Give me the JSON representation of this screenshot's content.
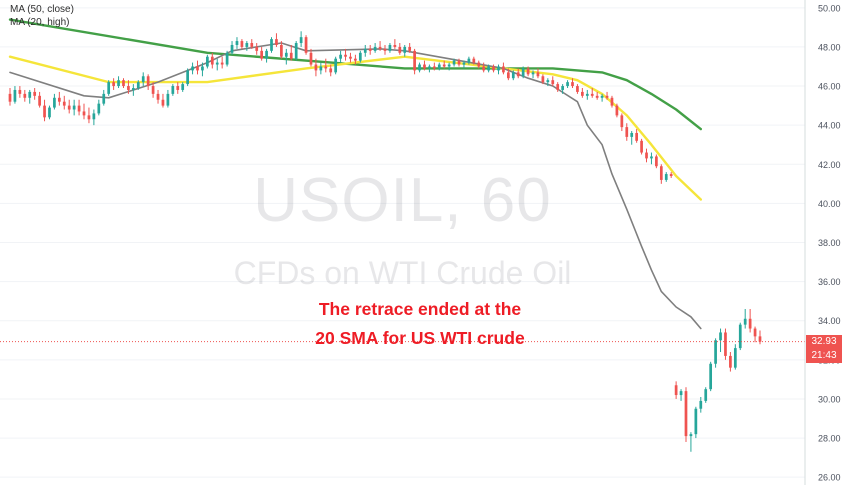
{
  "legend": {
    "ma1": "MA (50, close)",
    "ma2": "MA (20, high)"
  },
  "watermark": {
    "symbol": "USOIL, 60",
    "description": "CFDs on WTI Crude Oil"
  },
  "annotation": {
    "line1": "The retrace ended at the",
    "line2": "20 SMA for US WTI crude"
  },
  "price_tag": {
    "price": "32.93",
    "countdown": "21:43"
  },
  "colors": {
    "up": "#26a69a",
    "down": "#ef5350",
    "ma50": "#43a047",
    "ma20": "#f5e53a",
    "sma_gray": "#7f7f7f",
    "annotation": "#ee1c25"
  },
  "chart_data": {
    "type": "candlestick",
    "y_axis": {
      "ylim": [
        25.6,
        50.4
      ],
      "ticks": [
        "26.00",
        "28.00",
        "30.00",
        "32.00",
        "34.00",
        "36.00",
        "38.00",
        "40.00",
        "42.00",
        "44.00",
        "46.00",
        "48.00",
        "50.00"
      ]
    },
    "last_price": 32.93,
    "candles": [
      [
        45.6,
        45.9,
        45.0,
        45.2
      ],
      [
        45.2,
        46.0,
        45.1,
        45.8
      ],
      [
        45.8,
        46.0,
        45.4,
        45.6
      ],
      [
        45.6,
        45.8,
        45.2,
        45.4
      ],
      [
        45.4,
        45.8,
        45.1,
        45.7
      ],
      [
        45.7,
        45.9,
        45.3,
        45.5
      ],
      [
        45.5,
        45.7,
        44.9,
        45.0
      ],
      [
        45.0,
        45.3,
        44.2,
        44.4
      ],
      [
        44.4,
        45.0,
        44.3,
        44.9
      ],
      [
        44.9,
        45.6,
        44.8,
        45.4
      ],
      [
        45.4,
        45.7,
        45.0,
        45.2
      ],
      [
        45.2,
        45.5,
        44.8,
        45.0
      ],
      [
        45.0,
        45.3,
        44.6,
        44.8
      ],
      [
        44.8,
        45.3,
        44.5,
        45.0
      ],
      [
        45.0,
        45.3,
        44.5,
        44.7
      ],
      [
        44.7,
        45.1,
        44.3,
        44.5
      ],
      [
        44.5,
        44.9,
        44.1,
        44.3
      ],
      [
        44.3,
        44.8,
        44.0,
        44.6
      ],
      [
        44.6,
        45.3,
        44.5,
        45.1
      ],
      [
        45.1,
        45.8,
        45.0,
        45.6
      ],
      [
        45.6,
        46.3,
        45.5,
        46.2
      ],
      [
        46.2,
        46.4,
        45.8,
        46.0
      ],
      [
        46.0,
        46.5,
        45.9,
        46.3
      ],
      [
        46.3,
        46.4,
        45.9,
        46.0
      ],
      [
        46.0,
        46.3,
        45.6,
        45.8
      ],
      [
        45.8,
        46.1,
        45.5,
        45.9
      ],
      [
        45.9,
        46.3,
        45.8,
        46.2
      ],
      [
        46.2,
        46.7,
        46.0,
        46.5
      ],
      [
        46.5,
        46.6,
        45.8,
        46.0
      ],
      [
        46.0,
        46.2,
        45.4,
        45.6
      ],
      [
        45.6,
        45.8,
        45.1,
        45.3
      ],
      [
        45.3,
        45.6,
        44.9,
        45.0
      ],
      [
        45.0,
        45.8,
        44.9,
        45.6
      ],
      [
        45.6,
        46.1,
        45.5,
        46.0
      ],
      [
        46.0,
        46.2,
        45.6,
        45.8
      ],
      [
        45.8,
        46.2,
        45.7,
        46.1
      ],
      [
        46.1,
        46.9,
        46.0,
        46.8
      ],
      [
        46.8,
        47.2,
        46.6,
        47.0
      ],
      [
        47.0,
        47.3,
        46.6,
        46.8
      ],
      [
        46.8,
        47.2,
        46.5,
        47.0
      ],
      [
        47.0,
        47.6,
        46.9,
        47.5
      ],
      [
        47.5,
        47.7,
        46.9,
        47.1
      ],
      [
        47.1,
        47.4,
        46.8,
        47.2
      ],
      [
        47.2,
        47.5,
        46.9,
        47.1
      ],
      [
        47.1,
        47.8,
        47.0,
        47.7
      ],
      [
        47.7,
        48.3,
        47.6,
        48.1
      ],
      [
        48.1,
        48.5,
        47.9,
        48.3
      ],
      [
        48.3,
        48.4,
        47.9,
        48.0
      ],
      [
        48.0,
        48.3,
        47.8,
        48.2
      ],
      [
        48.2,
        48.4,
        47.9,
        48.0
      ],
      [
        48.0,
        48.2,
        47.6,
        47.8
      ],
      [
        47.8,
        48.0,
        47.3,
        47.4
      ],
      [
        47.4,
        47.9,
        47.2,
        47.8
      ],
      [
        47.8,
        48.5,
        47.7,
        48.4
      ],
      [
        48.4,
        48.7,
        48.0,
        48.1
      ],
      [
        48.1,
        48.3,
        47.4,
        47.5
      ],
      [
        47.5,
        47.9,
        47.1,
        47.7
      ],
      [
        47.7,
        48.1,
        47.3,
        47.4
      ],
      [
        47.4,
        48.3,
        47.3,
        48.2
      ],
      [
        48.2,
        48.8,
        48.0,
        48.5
      ],
      [
        48.5,
        48.6,
        47.6,
        47.7
      ],
      [
        47.7,
        47.9,
        47.0,
        47.1
      ],
      [
        47.1,
        47.4,
        46.5,
        46.8
      ],
      [
        46.8,
        47.2,
        46.6,
        47.0
      ],
      [
        47.0,
        47.4,
        46.7,
        46.9
      ],
      [
        46.9,
        47.1,
        46.5,
        46.7
      ],
      [
        46.7,
        47.5,
        46.6,
        47.4
      ],
      [
        47.4,
        47.8,
        47.2,
        47.6
      ],
      [
        47.6,
        47.9,
        47.3,
        47.5
      ],
      [
        47.5,
        47.7,
        47.2,
        47.4
      ],
      [
        47.4,
        47.6,
        47.1,
        47.3
      ],
      [
        47.3,
        47.8,
        47.2,
        47.7
      ],
      [
        47.7,
        48.1,
        47.5,
        47.9
      ],
      [
        47.9,
        48.1,
        47.6,
        47.8
      ],
      [
        47.8,
        48.2,
        47.7,
        48.0
      ],
      [
        48.0,
        48.3,
        47.8,
        47.9
      ],
      [
        47.9,
        48.1,
        47.6,
        47.8
      ],
      [
        47.8,
        48.2,
        47.7,
        48.1
      ],
      [
        48.1,
        48.4,
        47.9,
        48.0
      ],
      [
        48.0,
        48.2,
        47.6,
        47.7
      ],
      [
        47.7,
        48.1,
        47.5,
        48.0
      ],
      [
        48.0,
        48.2,
        47.7,
        47.8
      ],
      [
        47.8,
        47.9,
        46.6,
        46.8
      ],
      [
        46.8,
        47.2,
        46.7,
        47.1
      ],
      [
        47.1,
        47.3,
        46.8,
        46.9
      ],
      [
        46.9,
        47.1,
        46.7,
        47.0
      ],
      [
        47.0,
        47.2,
        46.8,
        46.9
      ],
      [
        46.9,
        47.2,
        46.8,
        47.1
      ],
      [
        47.1,
        47.3,
        46.9,
        47.0
      ],
      [
        47.0,
        47.2,
        46.8,
        47.1
      ],
      [
        47.1,
        47.4,
        47.0,
        47.3
      ],
      [
        47.3,
        47.4,
        47.0,
        47.1
      ],
      [
        47.1,
        47.3,
        46.9,
        47.2
      ],
      [
        47.2,
        47.5,
        47.1,
        47.4
      ],
      [
        47.4,
        47.5,
        47.1,
        47.2
      ],
      [
        47.2,
        47.3,
        46.9,
        47.0
      ],
      [
        47.0,
        47.2,
        46.7,
        46.8
      ],
      [
        46.8,
        47.1,
        46.7,
        47.0
      ],
      [
        47.0,
        47.1,
        46.7,
        46.8
      ],
      [
        46.8,
        47.1,
        46.6,
        47.0
      ],
      [
        47.0,
        47.2,
        46.6,
        46.7
      ],
      [
        46.7,
        46.9,
        46.3,
        46.4
      ],
      [
        46.4,
        46.8,
        46.3,
        46.7
      ],
      [
        46.7,
        46.9,
        46.4,
        46.5
      ],
      [
        46.5,
        47.0,
        46.4,
        46.9
      ],
      [
        46.9,
        47.0,
        46.5,
        46.6
      ],
      [
        46.6,
        46.8,
        46.4,
        46.7
      ],
      [
        46.7,
        46.9,
        46.4,
        46.5
      ],
      [
        46.5,
        46.6,
        46.1,
        46.2
      ],
      [
        46.2,
        46.4,
        46.0,
        46.3
      ],
      [
        46.3,
        46.5,
        46.0,
        46.1
      ],
      [
        46.1,
        46.2,
        45.7,
        45.8
      ],
      [
        45.8,
        46.1,
        45.6,
        46.0
      ],
      [
        46.0,
        46.3,
        45.9,
        46.2
      ],
      [
        46.2,
        46.4,
        45.9,
        46.0
      ],
      [
        46.0,
        46.1,
        45.6,
        45.7
      ],
      [
        45.7,
        45.9,
        45.4,
        45.5
      ],
      [
        45.5,
        45.8,
        45.3,
        45.6
      ],
      [
        45.6,
        45.9,
        45.4,
        45.5
      ],
      [
        45.5,
        45.7,
        45.3,
        45.4
      ],
      [
        45.4,
        45.6,
        45.2,
        45.5
      ],
      [
        45.5,
        45.7,
        45.3,
        45.4
      ],
      [
        45.4,
        45.5,
        44.9,
        45.0
      ],
      [
        45.0,
        45.1,
        44.4,
        44.5
      ],
      [
        44.5,
        44.6,
        43.7,
        43.9
      ],
      [
        43.9,
        44.1,
        43.2,
        43.4
      ],
      [
        43.4,
        43.7,
        43.0,
        43.6
      ],
      [
        43.6,
        43.8,
        43.1,
        43.2
      ],
      [
        43.2,
        43.3,
        42.5,
        42.6
      ],
      [
        42.6,
        42.8,
        42.1,
        42.3
      ],
      [
        42.3,
        42.6,
        42.0,
        42.4
      ],
      [
        42.4,
        42.5,
        41.8,
        41.9
      ],
      [
        41.9,
        42.0,
        41.0,
        41.2
      ],
      [
        41.2,
        41.6,
        41.1,
        41.5
      ],
      [
        41.5,
        41.6,
        41.3,
        41.4
      ],
      [
        30.7,
        30.9,
        30.0,
        30.2
      ],
      [
        30.2,
        30.5,
        29.9,
        30.4
      ],
      [
        30.4,
        30.6,
        27.8,
        28.1
      ],
      [
        28.1,
        28.3,
        27.3,
        28.2
      ],
      [
        28.2,
        29.6,
        28.0,
        29.5
      ],
      [
        29.5,
        30.1,
        29.3,
        29.9
      ],
      [
        29.9,
        30.6,
        29.8,
        30.5
      ],
      [
        30.5,
        31.9,
        30.4,
        31.8
      ],
      [
        31.8,
        33.1,
        31.6,
        33.0
      ],
      [
        33.0,
        33.6,
        32.4,
        33.4
      ],
      [
        33.4,
        33.6,
        32.0,
        32.2
      ],
      [
        32.2,
        32.4,
        31.4,
        31.6
      ],
      [
        31.6,
        32.8,
        31.5,
        32.6
      ],
      [
        32.6,
        33.9,
        32.5,
        33.8
      ],
      [
        33.8,
        34.6,
        33.6,
        34.1
      ],
      [
        34.1,
        34.6,
        33.4,
        33.6
      ],
      [
        33.6,
        33.7,
        32.9,
        33.2
      ],
      [
        33.2,
        33.5,
        32.8,
        32.93
      ]
    ],
    "moving_averages": [
      {
        "name": "MA (50, close)",
        "color": "#43a047",
        "x": [
          0,
          40,
          80,
          100,
          110,
          120,
          125,
          130,
          135,
          140
        ],
        "y": [
          49.4,
          47.7,
          46.9,
          46.9,
          46.9,
          46.7,
          46.3,
          45.6,
          44.8,
          43.8
        ]
      },
      {
        "name": "MA (20, high)",
        "color": "#f5e53a",
        "x": [
          0,
          20,
          40,
          60,
          80,
          100,
          110,
          115,
          120,
          125,
          130,
          135,
          140
        ],
        "y": [
          47.5,
          46.2,
          46.2,
          46.9,
          47.5,
          46.9,
          46.6,
          46.3,
          45.6,
          44.5,
          43.0,
          41.4,
          40.2
        ]
      },
      {
        "name": "20 SMA",
        "color": "#7f7f7f",
        "x": [
          0,
          15,
          20,
          25,
          30,
          40,
          45,
          55,
          60,
          75,
          80,
          100,
          105,
          110,
          115,
          117,
          120,
          122,
          125,
          128,
          130,
          132,
          135,
          138,
          140
        ],
        "y": [
          46.7,
          45.5,
          45.4,
          45.8,
          46.2,
          47.2,
          47.8,
          48.2,
          47.8,
          47.9,
          47.8,
          46.9,
          46.4,
          46.0,
          45.2,
          44.0,
          43.0,
          41.5,
          39.7,
          37.8,
          36.6,
          35.5,
          34.7,
          34.2,
          33.6
        ]
      }
    ]
  }
}
